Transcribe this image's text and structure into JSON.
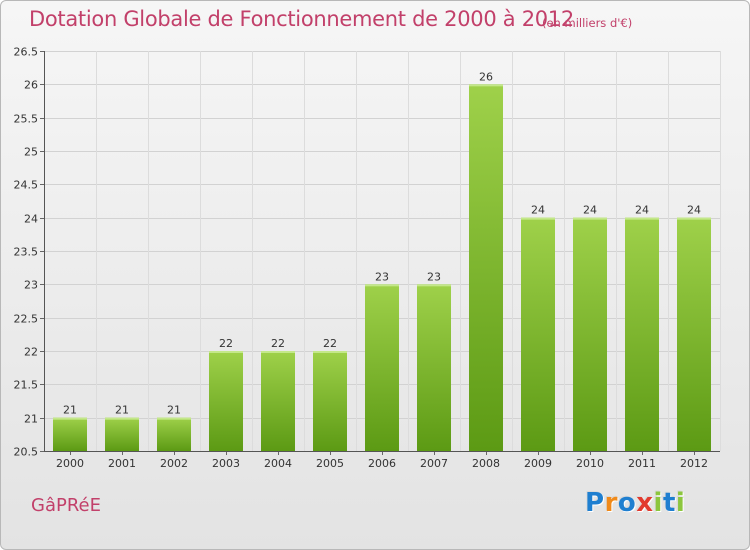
{
  "header": {
    "title": "Dotation Globale de Fonctionnement de 2000 à 2012",
    "subtitle": "(en milliers d'€)"
  },
  "footer": {
    "commune": "GâPRéE",
    "logo": [
      "P",
      "r",
      "o",
      "x",
      "i",
      "t",
      "i"
    ]
  },
  "colors": {
    "bar_light": "#9fd14a",
    "bar_dark": "#5c9a14",
    "title": "#c2406a",
    "logo": [
      "#1f7fd0",
      "#f08a1a",
      "#1f7fd0",
      "#e23a2e",
      "#8cc63e",
      "#1f7fd0",
      "#8cc63e"
    ]
  },
  "chart_data": {
    "type": "bar",
    "title": "Dotation Globale de Fonctionnement de 2000 à 2012",
    "categories": [
      "2000",
      "2001",
      "2002",
      "2003",
      "2004",
      "2005",
      "2006",
      "2007",
      "2008",
      "2009",
      "2010",
      "2011",
      "2012"
    ],
    "values": [
      21,
      21,
      21,
      22,
      22,
      22,
      23,
      23,
      26,
      24,
      24,
      24,
      24
    ],
    "ylim": [
      20.5,
      26.5
    ],
    "yticks": [
      "20.5",
      "21",
      "21.5",
      "22",
      "22.5",
      "23",
      "23.5",
      "24",
      "24.5",
      "25",
      "25.5",
      "26",
      "26.5"
    ],
    "grid": true,
    "legend": "none"
  }
}
